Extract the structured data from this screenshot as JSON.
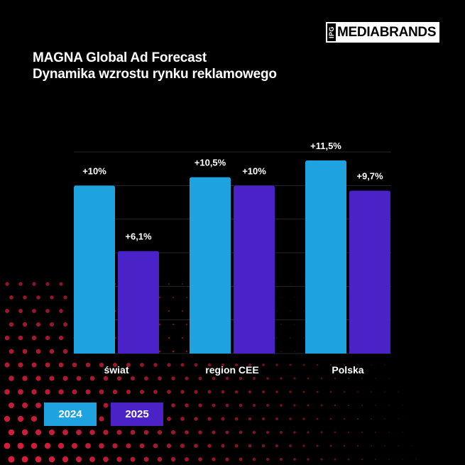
{
  "brand": {
    "prefix": "IPG",
    "name": "MEDIABRANDS"
  },
  "chart_data": {
    "type": "bar",
    "title": "MAGNA Global Ad Forecast",
    "subtitle": "Dynamika wzrostu rynku reklamowego",
    "categories": [
      "świat",
      "region CEE",
      "Polska"
    ],
    "series": [
      {
        "name": "2024",
        "color": "#1ea3e0",
        "values": [
          10,
          10.5,
          11.5
        ],
        "labels": [
          "+10%",
          "+10,5%",
          "+11,5%"
        ]
      },
      {
        "name": "2025",
        "color": "#4a22c8",
        "values": [
          6.1,
          10,
          9.7
        ],
        "labels": [
          "+6,1%",
          "+10%",
          "+9,7%"
        ]
      }
    ],
    "ylim": [
      0,
      12
    ],
    "grid": true,
    "legend": "bottom-left"
  }
}
